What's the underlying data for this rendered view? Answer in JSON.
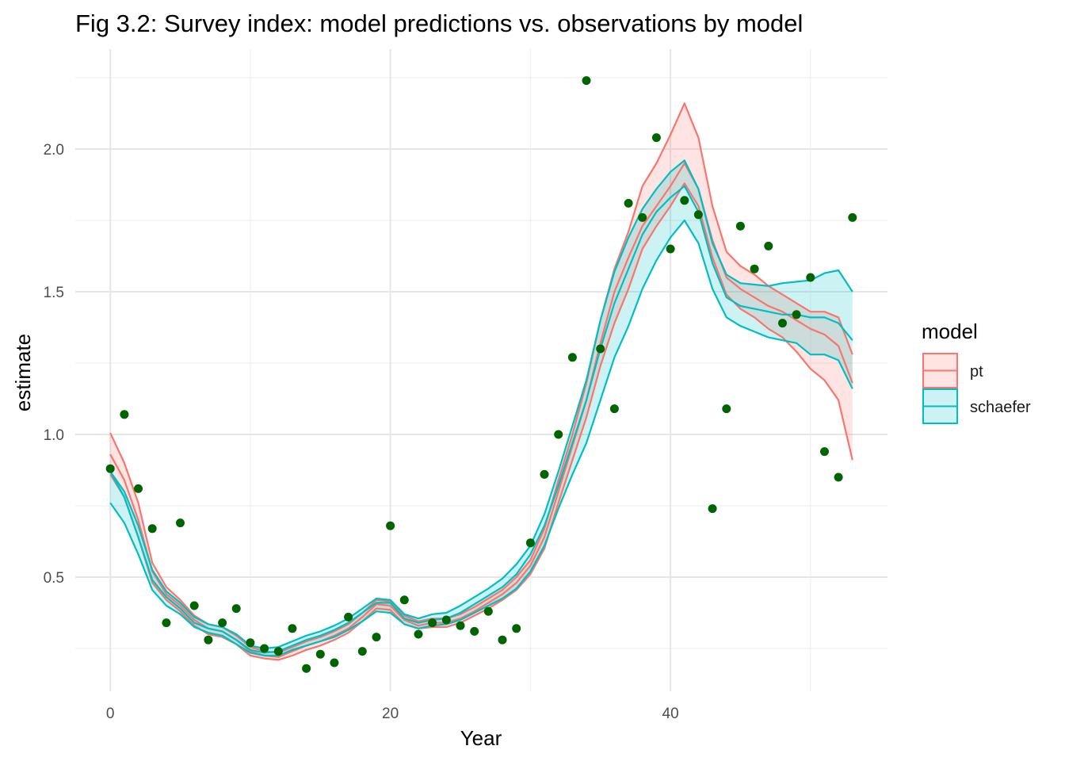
{
  "chart_data": {
    "type": "line",
    "title": "Fig 3.2: Survey index: model predictions vs. observations by model",
    "xlabel": "Year",
    "ylabel": "estimate",
    "xlim": [
      -2.5,
      55.5
    ],
    "ylim": [
      0.1,
      2.35
    ],
    "x_ticks": [
      0,
      20,
      40
    ],
    "x_tick_labels": [
      "0",
      "20",
      "40"
    ],
    "y_ticks": [
      0.5,
      1.0,
      1.5,
      2.0
    ],
    "y_tick_labels": [
      "0.5",
      "1.0",
      "1.5",
      "2.0"
    ],
    "grid": true,
    "legend": {
      "title": "model",
      "position": "right",
      "entries": [
        "pt",
        "schaefer"
      ]
    },
    "x": [
      0,
      1,
      2,
      3,
      4,
      5,
      6,
      7,
      8,
      9,
      10,
      11,
      12,
      13,
      14,
      15,
      16,
      17,
      18,
      19,
      20,
      21,
      22,
      23,
      24,
      25,
      26,
      27,
      28,
      29,
      30,
      31,
      32,
      33,
      34,
      35,
      36,
      37,
      38,
      39,
      40,
      41,
      42,
      43,
      44,
      45,
      46,
      47,
      48,
      49,
      50,
      51,
      52,
      53
    ],
    "series": [
      {
        "name": "pt",
        "color": "#F8766D",
        "estimate": [
          0.93,
          0.84,
          0.7,
          0.52,
          0.44,
          0.4,
          0.35,
          0.32,
          0.31,
          0.28,
          0.24,
          0.225,
          0.22,
          0.24,
          0.26,
          0.275,
          0.295,
          0.32,
          0.36,
          0.405,
          0.4,
          0.35,
          0.33,
          0.34,
          0.34,
          0.355,
          0.38,
          0.41,
          0.44,
          0.48,
          0.54,
          0.64,
          0.8,
          0.96,
          1.12,
          1.32,
          1.5,
          1.62,
          1.73,
          1.8,
          1.87,
          1.95,
          1.86,
          1.68,
          1.55,
          1.51,
          1.48,
          1.45,
          1.43,
          1.4,
          1.37,
          1.35,
          1.31,
          1.18
        ],
        "lower": [
          0.86,
          0.78,
          0.64,
          0.48,
          0.42,
          0.38,
          0.33,
          0.3,
          0.29,
          0.265,
          0.225,
          0.215,
          0.21,
          0.225,
          0.245,
          0.26,
          0.28,
          0.305,
          0.345,
          0.39,
          0.385,
          0.335,
          0.32,
          0.325,
          0.325,
          0.34,
          0.365,
          0.39,
          0.42,
          0.455,
          0.51,
          0.6,
          0.76,
          0.91,
          1.06,
          1.24,
          1.39,
          1.51,
          1.65,
          1.73,
          1.8,
          1.88,
          1.8,
          1.62,
          1.49,
          1.44,
          1.41,
          1.37,
          1.34,
          1.29,
          1.23,
          1.19,
          1.12,
          0.91
        ],
        "upper": [
          1.005,
          0.9,
          0.76,
          0.55,
          0.465,
          0.42,
          0.365,
          0.335,
          0.325,
          0.295,
          0.255,
          0.24,
          0.235,
          0.255,
          0.275,
          0.29,
          0.31,
          0.335,
          0.375,
          0.42,
          0.415,
          0.365,
          0.345,
          0.355,
          0.355,
          0.37,
          0.395,
          0.425,
          0.455,
          0.5,
          0.56,
          0.67,
          0.84,
          1.0,
          1.18,
          1.4,
          1.58,
          1.71,
          1.87,
          1.95,
          2.05,
          2.16,
          2.04,
          1.8,
          1.64,
          1.59,
          1.56,
          1.52,
          1.49,
          1.46,
          1.43,
          1.43,
          1.41,
          1.28
        ]
      },
      {
        "name": "schaefer",
        "color": "#00BFC4",
        "estimate": [
          0.87,
          0.78,
          0.64,
          0.49,
          0.43,
          0.39,
          0.34,
          0.32,
          0.31,
          0.28,
          0.245,
          0.235,
          0.24,
          0.26,
          0.28,
          0.295,
          0.315,
          0.34,
          0.375,
          0.41,
          0.41,
          0.355,
          0.34,
          0.35,
          0.355,
          0.375,
          0.405,
          0.435,
          0.465,
          0.51,
          0.58,
          0.68,
          0.82,
          0.97,
          1.12,
          1.3,
          1.46,
          1.58,
          1.7,
          1.78,
          1.83,
          1.87,
          1.78,
          1.6,
          1.48,
          1.45,
          1.44,
          1.43,
          1.42,
          1.42,
          1.41,
          1.41,
          1.39,
          1.33
        ],
        "lower": [
          0.76,
          0.69,
          0.58,
          0.455,
          0.4,
          0.37,
          0.325,
          0.305,
          0.295,
          0.265,
          0.235,
          0.225,
          0.225,
          0.245,
          0.26,
          0.275,
          0.29,
          0.315,
          0.345,
          0.38,
          0.375,
          0.335,
          0.32,
          0.33,
          0.335,
          0.35,
          0.375,
          0.4,
          0.425,
          0.46,
          0.52,
          0.61,
          0.74,
          0.86,
          0.97,
          1.12,
          1.27,
          1.38,
          1.51,
          1.61,
          1.69,
          1.75,
          1.67,
          1.51,
          1.41,
          1.38,
          1.36,
          1.34,
          1.33,
          1.32,
          1.28,
          1.28,
          1.26,
          1.16
        ],
        "upper": [
          0.87,
          0.8,
          0.68,
          0.525,
          0.45,
          0.41,
          0.36,
          0.335,
          0.325,
          0.3,
          0.26,
          0.25,
          0.255,
          0.275,
          0.295,
          0.31,
          0.33,
          0.355,
          0.39,
          0.425,
          0.42,
          0.37,
          0.355,
          0.37,
          0.375,
          0.4,
          0.43,
          0.46,
          0.495,
          0.545,
          0.61,
          0.72,
          0.87,
          1.03,
          1.19,
          1.4,
          1.57,
          1.69,
          1.79,
          1.86,
          1.92,
          1.96,
          1.86,
          1.67,
          1.56,
          1.53,
          1.525,
          1.52,
          1.53,
          1.535,
          1.54,
          1.565,
          1.575,
          1.5
        ]
      }
    ],
    "observations": {
      "color": "#006400",
      "x": [
        0,
        1,
        2,
        3,
        4,
        5,
        6,
        7,
        8,
        9,
        10,
        11,
        12,
        13,
        14,
        15,
        16,
        17,
        18,
        19,
        20,
        21,
        22,
        23,
        24,
        25,
        26,
        27,
        28,
        29,
        30,
        31,
        32,
        33,
        34,
        35,
        36,
        37,
        38,
        39,
        40,
        41,
        42,
        43,
        44,
        45,
        46,
        47,
        48,
        49,
        50,
        51,
        52,
        53
      ],
      "y": [
        0.88,
        1.07,
        0.81,
        0.67,
        0.34,
        0.69,
        0.4,
        0.28,
        0.34,
        0.39,
        0.27,
        0.25,
        0.24,
        0.32,
        0.18,
        0.23,
        0.2,
        0.36,
        0.24,
        0.29,
        0.68,
        0.42,
        0.3,
        0.34,
        0.35,
        0.33,
        0.31,
        0.38,
        0.28,
        0.32,
        0.62,
        0.86,
        1.0,
        1.27,
        2.24,
        1.3,
        1.09,
        1.81,
        1.76,
        2.04,
        1.65,
        1.82,
        1.77,
        0.74,
        1.09,
        1.73,
        1.58,
        1.66,
        1.39,
        1.42,
        1.55,
        0.94,
        0.85,
        1.76
      ]
    }
  }
}
